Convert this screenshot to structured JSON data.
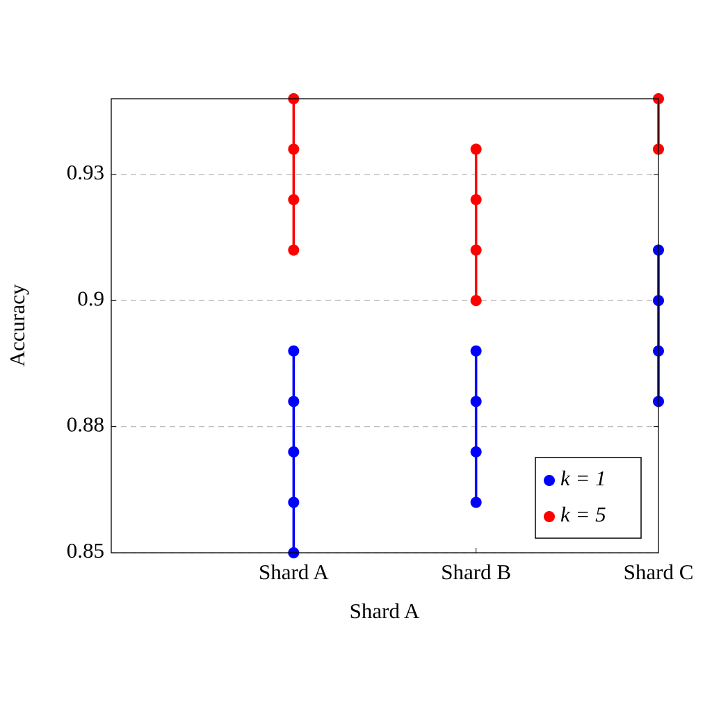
{
  "chart_data": {
    "type": "line",
    "xlabel": "Shard A",
    "ylabel": "Accuracy",
    "xlim": [
      0,
      3
    ],
    "xticks": [
      {
        "value": 1,
        "label": "Shard A"
      },
      {
        "value": 2,
        "label": "Shard B"
      },
      {
        "value": 3,
        "label": "Shard C"
      }
    ],
    "ylim": [
      0.85,
      0.94
    ],
    "yticks": [
      0.85,
      {
        "value": 0.875,
        "label": "0.88"
      },
      0.9,
      {
        "value": 0.925,
        "label": "0.93"
      }
    ],
    "grid": true,
    "legend": "lower right",
    "series": [
      {
        "name": "k = 1",
        "color": "#0000ff",
        "x": [
          1,
          1,
          1,
          1,
          1,
          2,
          2,
          2,
          2,
          3,
          3,
          3,
          3
        ],
        "values": [
          0.85,
          0.86,
          0.87,
          0.88,
          0.89,
          0.86,
          0.87,
          0.88,
          0.89,
          0.88,
          0.89,
          0.9,
          0.91
        ]
      },
      {
        "name": "k = 5",
        "color": "#ff0000",
        "x": [
          1,
          1,
          1,
          1,
          2,
          2,
          2,
          2,
          3,
          3
        ],
        "values": [
          0.91,
          0.92,
          0.93,
          0.94,
          0.9,
          0.91,
          0.92,
          0.93,
          0.93,
          0.94
        ]
      }
    ]
  }
}
